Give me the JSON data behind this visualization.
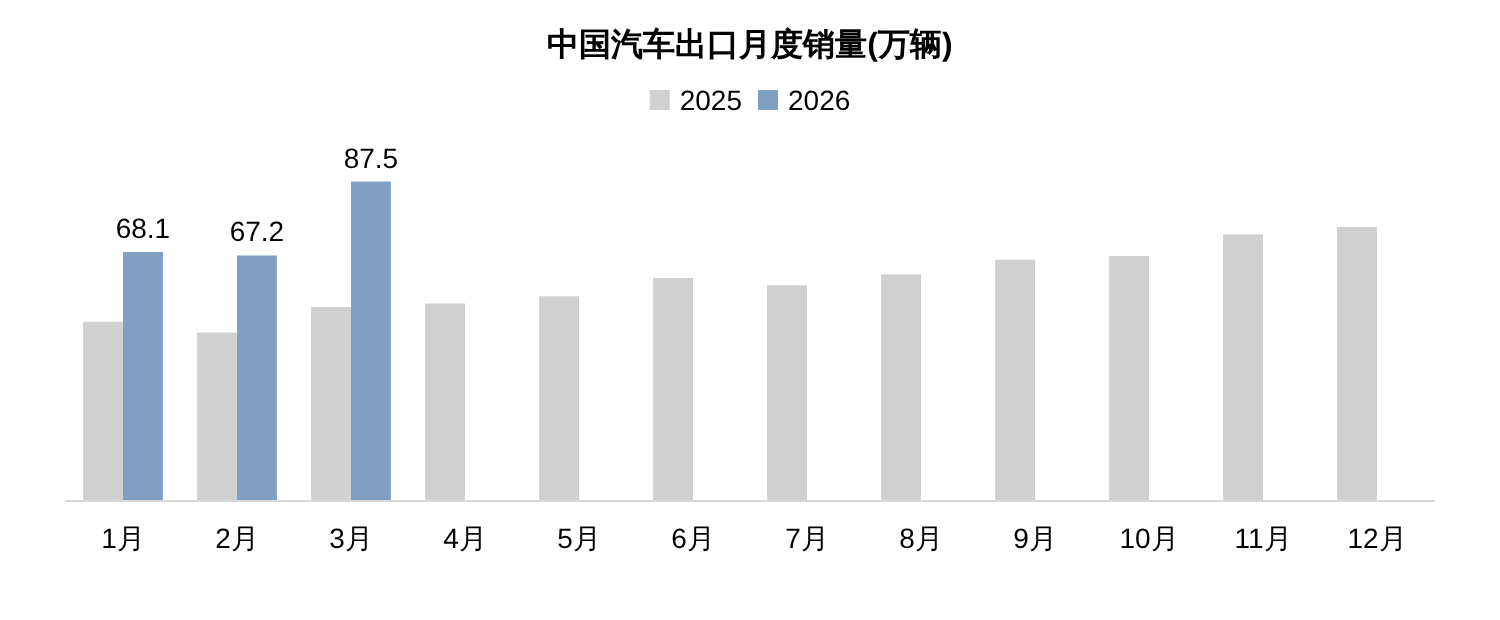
{
  "chart_data": {
    "type": "bar",
    "title": "中国汽车出口月度销量(万辆)",
    "categories": [
      "1月",
      "2月",
      "3月",
      "4月",
      "5月",
      "6月",
      "7月",
      "8月",
      "9月",
      "10月",
      "11月",
      "12月"
    ],
    "series": [
      {
        "name": "2025",
        "color": "#d0d0d0",
        "values": [
          49,
          46,
          53,
          54,
          56,
          61,
          59,
          62,
          66,
          67,
          73,
          75
        ]
      },
      {
        "name": "2026",
        "color": "#7f9fc3",
        "values": [
          68.1,
          67.2,
          87.5,
          null,
          null,
          null,
          null,
          null,
          null,
          null,
          null,
          null
        ],
        "value_labels": [
          "68.1",
          "67.2",
          "87.5",
          null,
          null,
          null,
          null,
          null,
          null,
          null,
          null,
          null
        ]
      }
    ],
    "legend": "top"
  }
}
